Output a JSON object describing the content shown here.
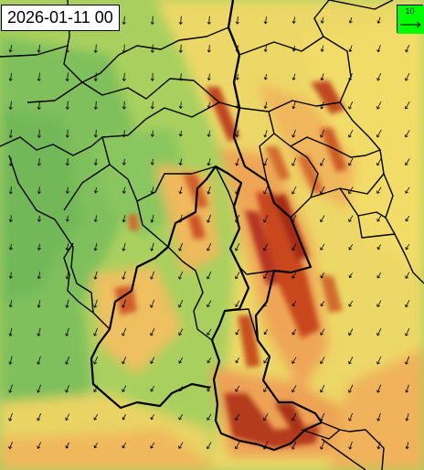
{
  "map": {
    "timestamp": "2026-01-11 00",
    "legend": {
      "label": "10",
      "color": "#00ff00"
    },
    "colors": {
      "calm": "#79bd5c",
      "light": "#b2d560",
      "moderate": "#f1df68",
      "strong": "#f0b25a",
      "very_strong": "#e0793c",
      "extreme": "#b3321b",
      "border": "#000000",
      "arrow": "#000000"
    }
  }
}
